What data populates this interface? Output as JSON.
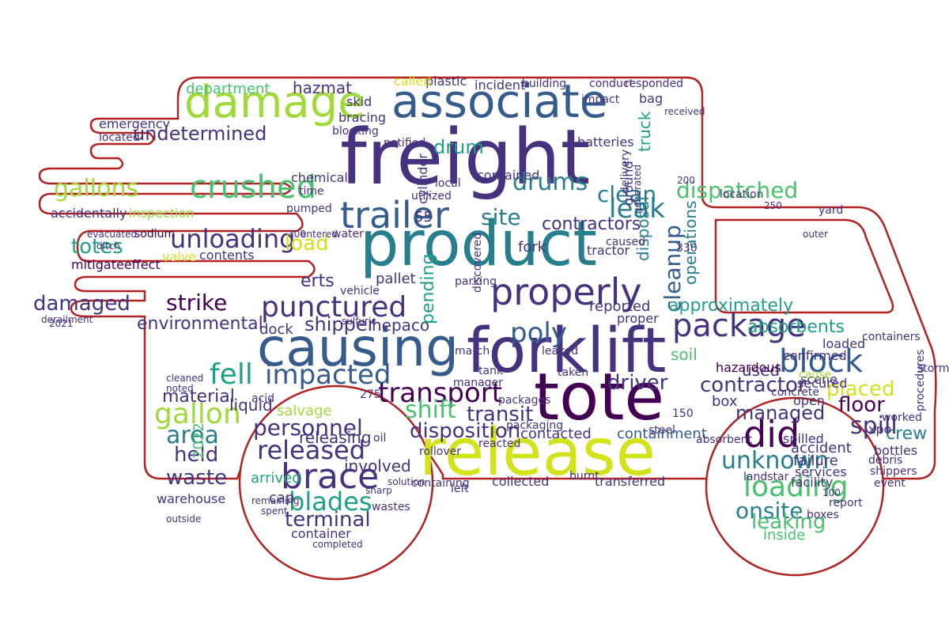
{
  "colors": {
    "outline": "#b22222",
    "background": "#ffffff",
    "palette": [
      "#440154",
      "#46327e",
      "#365c8d",
      "#277f8e",
      "#1fa187",
      "#4ac16d",
      "#a0da39",
      "#d2e21b",
      "#fde725"
    ]
  },
  "words": {
    "freight": "freight",
    "forklift": "forklift",
    "tote": "tote",
    "release": "release",
    "product": "product",
    "causing": "causing",
    "associate": "associate",
    "damage": "damage",
    "trailer": "trailer",
    "properly": "properly",
    "punctured": "punctured",
    "package": "package",
    "block": "block",
    "crushed": "crushed",
    "gallons": "gallons",
    "unloading": "unloading",
    "fell": "fell",
    "impacted": "impacted",
    "transport": "transport",
    "undetermined": "undetermined",
    "damaged": "damaged",
    "strike": "strike",
    "poly": "poly",
    "cleanup": "cleanup",
    "leak": "leak",
    "dispatched": "dispatched",
    "approximately": "approximately",
    "absorbents": "absorbents",
    "contractor": "contractor",
    "placed": "placed",
    "gallon": "gallon",
    "area": "area",
    "brace": "brace",
    "released": "released",
    "personnel": "personnel",
    "blades": "blades",
    "did": "did",
    "unknown": "unknown",
    "loading": "loading",
    "onsite": "onsite",
    "leaking": "leaking",
    "spill": "spill",
    "shift": "shift",
    "disposition": "disposition",
    "drums": "drums",
    "site": "site",
    "load": "load",
    "totes": "totes",
    "drum": "drum",
    "clean": "clean",
    "contractors": "contractors",
    "environmental": "environmental",
    "material": "material",
    "transit": "transit",
    "shipper": "shipper",
    "driver": "driver",
    "floor": "floor",
    "terminal": "terminal",
    "crew": "crew",
    "managed": "managed",
    "waste": "waste",
    "held": "held",
    "department": "department",
    "hazmat": "hazmat",
    "emergency": "emergency",
    "located": "located",
    "accidentally": "accidentally",
    "inspection": "inspection",
    "sodium": "sodium",
    "mitigateeffect": "mitigateeffect",
    "valve": "valve",
    "contents": "contents",
    "erts": "erts",
    "pallet": "pallet",
    "dock": "dock",
    "hepaco": "hepaco",
    "pending": "pending",
    "disposal": "disposal",
    "operations": "operations",
    "reported": "reported",
    "soil": "soil",
    "loaded": "loaded",
    "confirmed": "confirmed",
    "used": "used",
    "salvage": "salvage",
    "releasing": "releasing",
    "involved": "involved",
    "arrived": "arrived",
    "cap": "cap",
    "container": "container",
    "containment": "containment",
    "collected": "collected",
    "transferred": "transferred",
    "accident": "accident",
    "inside": "inside",
    "warehouse": "warehouse",
    "liquid": "liquid",
    "contacted": "contacted",
    "box": "box",
    "hazardous": "hazardous",
    "secured": "secured",
    "contained": "contained",
    "incident": "incident",
    "plastic": "plastic",
    "called": "called",
    "skid": "skid",
    "bracing": "bracing",
    "blocking": "blocking",
    "notified": "notified",
    "batteries": "batteries",
    "truck": "truck",
    "fork": "fork",
    "cylinder": "cylinder",
    "chemical": "chemical",
    "tractor": "tractor",
    "caused": "caused",
    "proper": "proper",
    "spilled": "spilled",
    "containers": "containers",
    "services": "services",
    "facility": "facility",
    "failure": "failure",
    "report": "report",
    "boxes": "boxes",
    "bottles": "bottles",
    "debris": "debris",
    "shippers": "shippers",
    "event": "event",
    "procedures": "procedures",
    "storm": "storm",
    "worked": "worked",
    "landstar": "landstar",
    "scene": "scene",
    "open": "open",
    "xpo": "xpo",
    "cause": "cause",
    "absorbent": "absorbent",
    "steel": "steel",
    "concrete": "concrete",
    "conduct": "conduct",
    "responded": "responded",
    "building": "building",
    "impact": "impact",
    "bag": "bag",
    "received": "received",
    "delivery": "delivery",
    "ground": "ground",
    "generated": "generated",
    "location": "location",
    "yard": "yard",
    "outer": "outer",
    "tank": "tank",
    "manager": "manager",
    "march": "march",
    "packages": "packages",
    "vehicle": "vehicle",
    "parking": "parking",
    "sulfuric": "sulfuric",
    "acid": "acid",
    "ditch": "ditch",
    "evacuated": "evacuated",
    "derailment": "derailment",
    "cleaned": "cleaned",
    "noted": "noted",
    "outside": "outside",
    "remaining": "remaining",
    "spent": "spent",
    "completed": "completed",
    "oil": "oil",
    "wastes": "wastes",
    "rollover": "rollover",
    "containing": "containing",
    "left": "left",
    "reacted": "reacted",
    "packaging": "packaging",
    "burnt": "burnt",
    "leaked": "leaked",
    "taken": "taken",
    "discovered": "discovered",
    "utilized": "utilized",
    "local": "local",
    "pumped": "pumped",
    "time": "time",
    "entered": "entered",
    "water": "water",
    "solution": "solution",
    "sharp": "sharp",
    "nums": [
      "55",
      "275",
      "2022",
      "330",
      "150",
      "200",
      "250",
      "300",
      "2021",
      "100"
    ]
  }
}
